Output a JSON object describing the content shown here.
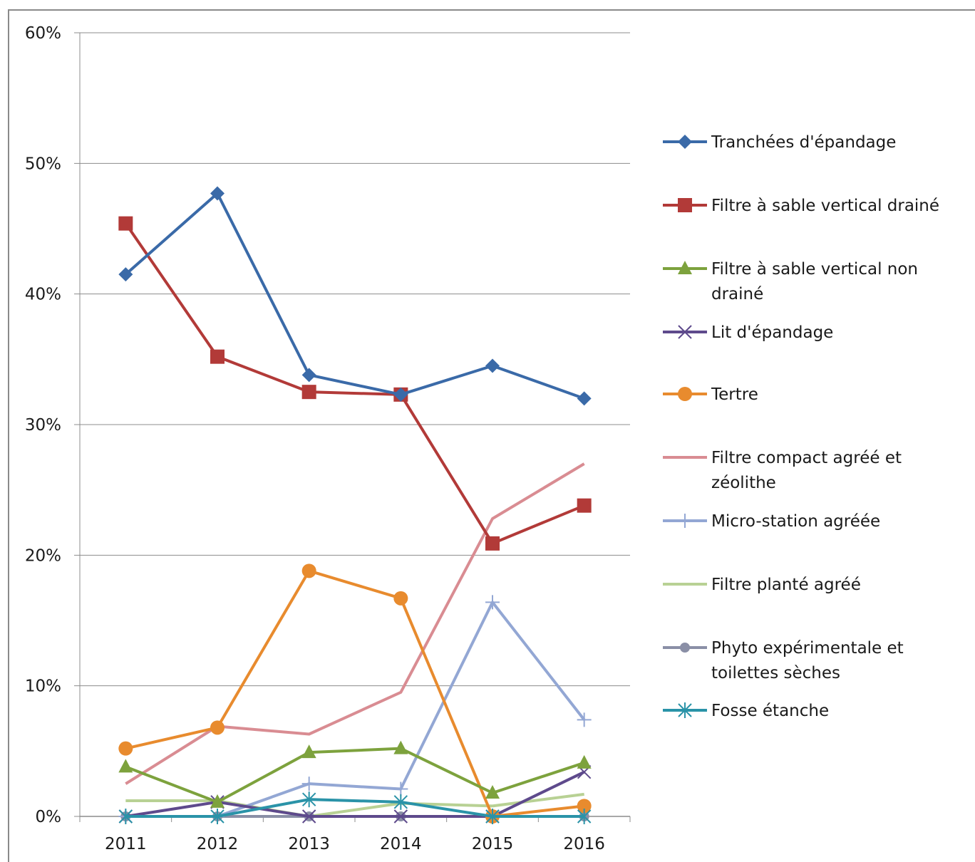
{
  "chart_data": {
    "type": "line",
    "categories": [
      "2011",
      "2012",
      "2013",
      "2014",
      "2015",
      "2016"
    ],
    "ylim": [
      0,
      60
    ],
    "yticks": [
      "0%",
      "10%",
      "20%",
      "30%",
      "40%",
      "50%",
      "60%"
    ],
    "grid": true,
    "legend_position": "right",
    "series": [
      {
        "name": "Tranchées d'épandage",
        "name_lines": [
          "Tranchées d'épandage"
        ],
        "color": "#3a6aa8",
        "marker": "diamond",
        "values": [
          41.5,
          47.7,
          33.8,
          32.3,
          34.5,
          32.0
        ]
      },
      {
        "name": "Filtre à sable vertical drainé",
        "name_lines": [
          "Filtre à sable vertical drainé"
        ],
        "color": "#b23a38",
        "marker": "square",
        "values": [
          45.4,
          35.2,
          32.5,
          32.3,
          20.9,
          23.8
        ]
      },
      {
        "name": "Filtre à sable vertical non drainé",
        "name_lines": [
          "Filtre à sable vertical non",
          "drainé"
        ],
        "color": "#7da23d",
        "marker": "triangle",
        "values": [
          3.8,
          1.1,
          4.9,
          5.2,
          1.8,
          4.1
        ]
      },
      {
        "name": "Lit d'épandage",
        "name_lines": [
          "Lit d'épandage"
        ],
        "color": "#5e4a8c",
        "marker": "x",
        "values": [
          0.0,
          1.1,
          0.0,
          0.0,
          0.0,
          3.4
        ]
      },
      {
        "name": "Tertre",
        "name_lines": [
          "Tertre"
        ],
        "color": "#e88b2e",
        "marker": "circle",
        "values": [
          5.2,
          6.8,
          18.8,
          16.7,
          0.0,
          0.8
        ]
      },
      {
        "name": "Filtre compact agréé et zéolithe",
        "name_lines": [
          "Filtre compact agréé et",
          "zéolithe"
        ],
        "color": "#d98c92",
        "marker": "none",
        "values": [
          2.5,
          6.9,
          6.3,
          9.5,
          22.8,
          27.0
        ]
      },
      {
        "name": "Micro-station agréée",
        "name_lines": [
          "Micro-station agréée"
        ],
        "color": "#93a7d4",
        "marker": "plus",
        "values": [
          0.0,
          0.0,
          2.5,
          2.1,
          16.4,
          7.4
        ]
      },
      {
        "name": "Filtre planté agréé",
        "name_lines": [
          "Filtre planté agréé"
        ],
        "color": "#b8d194",
        "marker": "none",
        "values": [
          1.2,
          1.2,
          0.0,
          1.0,
          0.8,
          1.7
        ]
      },
      {
        "name": "Phyto expérimentale et toilettes sèches",
        "name_lines": [
          "Phyto expérimentale et",
          "toilettes sèches"
        ],
        "color": "#8a8fa6",
        "marker": "circle-small",
        "values": [
          0.0,
          0.0,
          0.0,
          0.0,
          0.0,
          0.0
        ]
      },
      {
        "name": "Fosse étanche",
        "name_lines": [
          "Fosse étanche"
        ],
        "color": "#2a93a8",
        "marker": "star",
        "values": [
          0.0,
          0.0,
          1.3,
          1.1,
          0.0,
          0.0
        ]
      }
    ]
  }
}
